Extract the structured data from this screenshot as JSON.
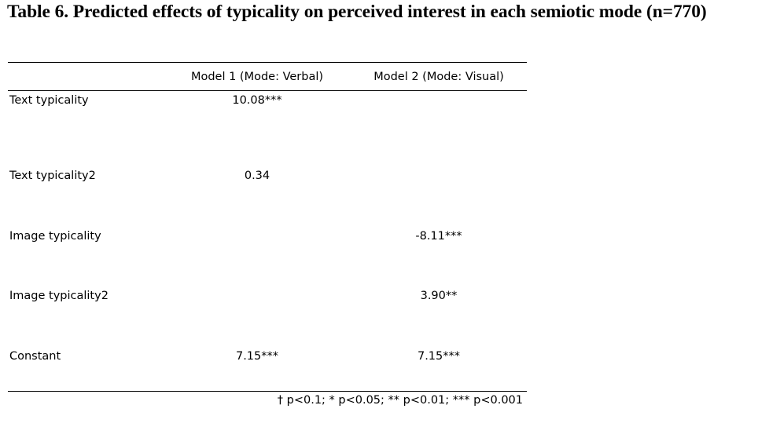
{
  "title": "Table 6. Predicted effects of typicality on perceived interest in each semiotic mode (n=770)",
  "table": {
    "columns": [
      "",
      "Model 1 (Mode: Verbal)",
      "Model 2 (Mode: Visual)"
    ],
    "rows": [
      {
        "label": "Text typicality",
        "model1": "10.08***",
        "model2": ""
      },
      {
        "label": "Text typicality2",
        "model1": "0.34",
        "model2": ""
      },
      {
        "label": "Image typicality",
        "model1": "",
        "model2": "-8.11***"
      },
      {
        "label": "Image typicality2",
        "model1": "",
        "model2": "3.90**"
      },
      {
        "label": "Constant",
        "model1": "7.15***",
        "model2": "7.15***"
      }
    ]
  },
  "footnote": "† p<0.1; * p<0.05; ** p<0.01; *** p<0.001"
}
